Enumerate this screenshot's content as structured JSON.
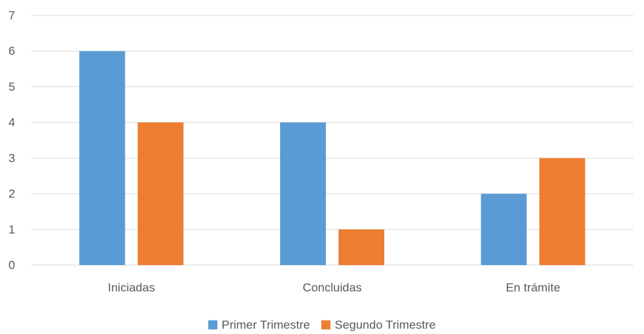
{
  "chart_data": {
    "type": "bar",
    "title": "",
    "xlabel": "",
    "ylabel": "",
    "categories": [
      "Iniciadas",
      "Concluidas",
      "En trámite"
    ],
    "series": [
      {
        "name": "Primer Trimestre",
        "color": "#5B9BD5",
        "values": [
          6,
          4,
          2
        ]
      },
      {
        "name": "Segundo Trimestre",
        "color": "#ED7D31",
        "values": [
          4,
          1,
          3
        ]
      }
    ],
    "ylim": [
      0,
      7
    ],
    "yticks": [
      0,
      1,
      2,
      3,
      4,
      5,
      6,
      7
    ],
    "grid": true,
    "gridline_color": "#D9D9D9",
    "legend_position": "bottom"
  }
}
